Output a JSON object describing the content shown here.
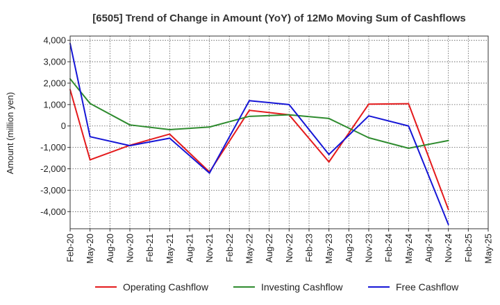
{
  "chart_data": {
    "type": "line",
    "title": "[6505]  Trend of Change in Amount (YoY) of 12Mo Moving Sum of Cashflows",
    "xlabel": "",
    "ylabel": "Amount (million yen)",
    "ylim": [
      -4800,
      4200
    ],
    "yticks": [
      4000,
      3000,
      2000,
      1000,
      0,
      -1000,
      -2000,
      -3000,
      -4000
    ],
    "ytick_labels": [
      "4,000",
      "3,000",
      "2,000",
      "1,000",
      "0",
      "-1,000",
      "-2,000",
      "-3,000",
      "-4,000"
    ],
    "categories": [
      "Feb-20",
      "May-20",
      "Aug-20",
      "Nov-20",
      "Feb-21",
      "May-21",
      "Aug-21",
      "Nov-21",
      "Feb-22",
      "May-22",
      "Aug-22",
      "Nov-22",
      "Feb-23",
      "May-23",
      "Aug-23",
      "Nov-23",
      "Feb-24",
      "May-24",
      "Aug-24",
      "Nov-24",
      "Feb-25",
      "May-25"
    ],
    "grid": true,
    "legend_position": "bottom",
    "series": [
      {
        "name": "Operating Cashflow",
        "color": "#e41a1c",
        "values": [
          1700,
          -1580,
          null,
          -900,
          null,
          -380,
          null,
          -2150,
          null,
          730,
          null,
          520,
          null,
          -1680,
          null,
          1020,
          null,
          1040,
          null,
          -3900,
          null,
          null
        ]
      },
      {
        "name": "Investing Cashflow",
        "color": "#2e8b2e",
        "values": [
          2200,
          1050,
          null,
          50,
          null,
          -170,
          null,
          -50,
          null,
          450,
          null,
          520,
          null,
          350,
          null,
          -550,
          null,
          -1040,
          null,
          -680,
          null,
          null
        ]
      },
      {
        "name": "Free Cashflow",
        "color": "#1515d6",
        "values": [
          3850,
          -500,
          null,
          -920,
          null,
          -570,
          null,
          -2200,
          null,
          1180,
          null,
          1000,
          null,
          -1330,
          null,
          470,
          null,
          0,
          null,
          -4600,
          null,
          null
        ]
      }
    ]
  }
}
